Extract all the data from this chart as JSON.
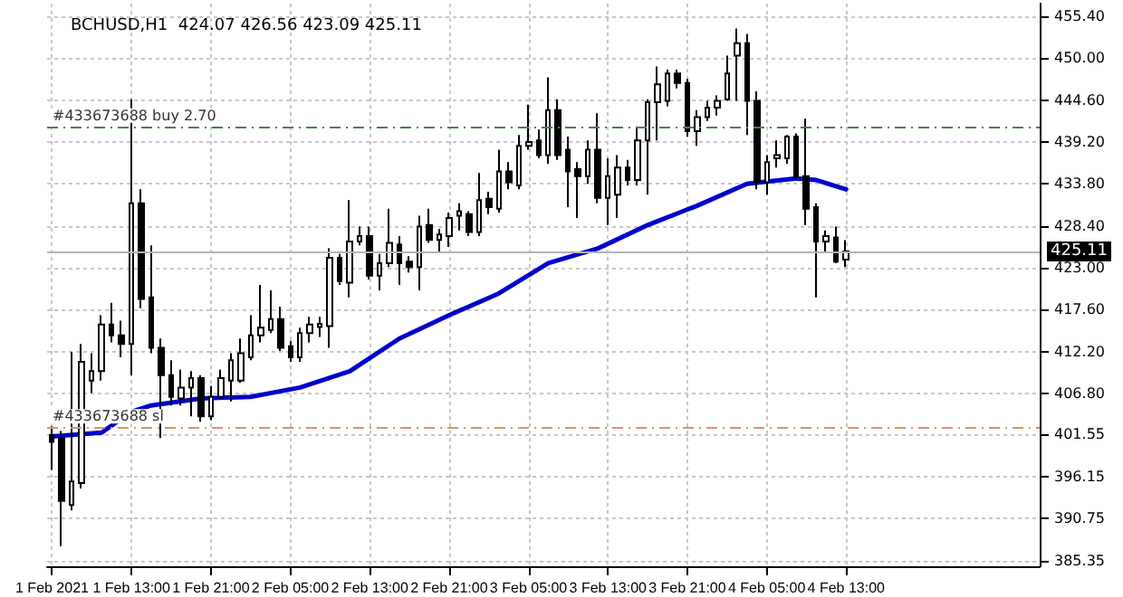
{
  "chart_data": {
    "type": "candlestick",
    "title": "BCHUSD,H1  424.07 426.56 423.09 425.11",
    "x": [
      "2021-02-01T05:00",
      "2021-02-01T06:00",
      "2021-02-01T07:00",
      "2021-02-01T08:00",
      "2021-02-01T09:00",
      "2021-02-01T10:00",
      "2021-02-01T11:00",
      "2021-02-01T12:00",
      "2021-02-01T13:00",
      "2021-02-01T14:00",
      "2021-02-01T15:00",
      "2021-02-01T16:00",
      "2021-02-01T17:00",
      "2021-02-01T18:00",
      "2021-02-01T19:00",
      "2021-02-01T20:00",
      "2021-02-01T21:00",
      "2021-02-01T22:00",
      "2021-02-01T23:00",
      "2021-02-02T00:00",
      "2021-02-02T01:00",
      "2021-02-02T02:00",
      "2021-02-02T03:00",
      "2021-02-02T04:00",
      "2021-02-02T05:00",
      "2021-02-02T06:00",
      "2021-02-02T07:00",
      "2021-02-02T08:00",
      "2021-02-02T09:00",
      "2021-02-02T10:00",
      "2021-02-02T11:00",
      "2021-02-02T12:00",
      "2021-02-02T13:00",
      "2021-02-02T14:00",
      "2021-02-02T15:00",
      "2021-02-02T16:00",
      "2021-02-02T17:00",
      "2021-02-02T18:00",
      "2021-02-02T19:00",
      "2021-02-02T20:00",
      "2021-02-02T21:00",
      "2021-02-02T22:00",
      "2021-02-02T23:00",
      "2021-02-03T00:00",
      "2021-02-03T01:00",
      "2021-02-03T02:00",
      "2021-02-03T03:00",
      "2021-02-03T04:00",
      "2021-02-03T05:00",
      "2021-02-03T06:00",
      "2021-02-03T07:00",
      "2021-02-03T08:00",
      "2021-02-03T09:00",
      "2021-02-03T10:00",
      "2021-02-03T11:00",
      "2021-02-03T12:00",
      "2021-02-03T13:00",
      "2021-02-03T14:00",
      "2021-02-03T15:00",
      "2021-02-03T16:00",
      "2021-02-03T17:00",
      "2021-02-03T18:00",
      "2021-02-03T19:00",
      "2021-02-03T20:00",
      "2021-02-03T21:00",
      "2021-02-03T22:00",
      "2021-02-03T23:00",
      "2021-02-04T00:00",
      "2021-02-04T01:00",
      "2021-02-04T02:00",
      "2021-02-04T03:00",
      "2021-02-04T04:00",
      "2021-02-04T05:00",
      "2021-02-04T06:00",
      "2021-02-04T07:00",
      "2021-02-04T08:00",
      "2021-02-04T09:00",
      "2021-02-04T10:00",
      "2021-02-04T11:00",
      "2021-02-04T12:00",
      "2021-02-04T13:00"
    ],
    "ohlc": [
      [
        401.5,
        402.6,
        397.0,
        400.6
      ],
      [
        401.1,
        402.0,
        387.2,
        393.0
      ],
      [
        392.5,
        412.2,
        391.8,
        395.5
      ],
      [
        395.3,
        413.2,
        394.6,
        410.9
      ],
      [
        408.5,
        412.0,
        406.9,
        409.7
      ],
      [
        409.7,
        416.9,
        408.5,
        415.7
      ],
      [
        415.7,
        418.5,
        413.4,
        414.3
      ],
      [
        414.3,
        416.2,
        411.5,
        413.2
      ],
      [
        413.2,
        444.7,
        409.2,
        431.3
      ],
      [
        431.3,
        433.1,
        417.8,
        419.0
      ],
      [
        419.2,
        425.9,
        412.0,
        412.7
      ],
      [
        412.7,
        413.9,
        401.1,
        409.2
      ],
      [
        409.2,
        411.1,
        405.3,
        406.4
      ],
      [
        406.2,
        409.9,
        405.3,
        407.6
      ],
      [
        407.6,
        409.7,
        403.9,
        408.8
      ],
      [
        408.8,
        409.2,
        403.2,
        403.9
      ],
      [
        403.9,
        407.8,
        403.4,
        406.4
      ],
      [
        406.4,
        409.9,
        406.2,
        408.8
      ],
      [
        408.5,
        412.0,
        405.8,
        411.1
      ],
      [
        408.5,
        413.9,
        408.2,
        412.0
      ],
      [
        411.5,
        416.9,
        411.1,
        414.3
      ],
      [
        414.3,
        420.8,
        413.4,
        415.3
      ],
      [
        415.0,
        420.1,
        414.6,
        416.4
      ],
      [
        416.4,
        418.0,
        412.3,
        412.7
      ],
      [
        412.9,
        413.6,
        410.9,
        411.5
      ],
      [
        411.5,
        415.3,
        410.9,
        414.6
      ],
      [
        414.6,
        416.7,
        413.4,
        415.7
      ],
      [
        415.4,
        416.7,
        414.1,
        415.8
      ],
      [
        415.5,
        425.5,
        412.7,
        424.3
      ],
      [
        424.3,
        424.8,
        420.8,
        421.3
      ],
      [
        421.1,
        431.7,
        419.2,
        426.4
      ],
      [
        426.4,
        428.3,
        425.9,
        427.1
      ],
      [
        427.1,
        428.3,
        421.5,
        422.0
      ],
      [
        422.0,
        424.8,
        420.1,
        423.6
      ],
      [
        423.6,
        430.6,
        423.1,
        426.2
      ],
      [
        426.0,
        427.1,
        420.8,
        423.6
      ],
      [
        423.8,
        424.5,
        422.4,
        423.1
      ],
      [
        423.1,
        429.7,
        420.1,
        428.3
      ],
      [
        428.5,
        430.6,
        426.2,
        426.6
      ],
      [
        426.6,
        428.0,
        425.0,
        427.3
      ],
      [
        427.1,
        430.1,
        425.7,
        429.4
      ],
      [
        429.7,
        431.3,
        427.8,
        430.3
      ],
      [
        429.9,
        430.3,
        427.1,
        427.6
      ],
      [
        427.6,
        435.2,
        427.1,
        431.7
      ],
      [
        431.9,
        432.8,
        429.9,
        430.8
      ],
      [
        430.6,
        438.2,
        430.1,
        435.4
      ],
      [
        435.4,
        436.6,
        433.1,
        434.0
      ],
      [
        433.6,
        440.1,
        433.1,
        438.7
      ],
      [
        438.7,
        444.0,
        438.2,
        439.2
      ],
      [
        439.4,
        440.8,
        437.1,
        437.5
      ],
      [
        437.5,
        447.5,
        436.4,
        443.3
      ],
      [
        443.3,
        444.7,
        436.9,
        437.5
      ],
      [
        438.2,
        439.9,
        430.8,
        435.4
      ],
      [
        435.7,
        436.6,
        429.4,
        434.8
      ],
      [
        434.8,
        439.4,
        433.8,
        438.2
      ],
      [
        438.2,
        442.9,
        431.3,
        432.0
      ],
      [
        432.0,
        437.1,
        428.5,
        434.8
      ],
      [
        432.4,
        437.5,
        429.4,
        435.9
      ],
      [
        435.9,
        436.9,
        433.6,
        434.3
      ],
      [
        434.3,
        441.2,
        433.6,
        439.4
      ],
      [
        439.4,
        444.7,
        432.4,
        444.3
      ],
      [
        444.3,
        448.9,
        439.4,
        446.6
      ],
      [
        444.5,
        448.5,
        443.8,
        448.0
      ],
      [
        448.0,
        448.5,
        446.1,
        446.8
      ],
      [
        446.8,
        447.3,
        439.9,
        440.6
      ],
      [
        440.6,
        443.3,
        438.7,
        442.4
      ],
      [
        442.4,
        444.5,
        441.9,
        443.6
      ],
      [
        443.6,
        445.2,
        442.6,
        444.5
      ],
      [
        444.7,
        450.3,
        444.5,
        448.0
      ],
      [
        450.3,
        453.8,
        444.5,
        451.9
      ],
      [
        451.9,
        453.1,
        440.1,
        444.5
      ],
      [
        444.5,
        445.7,
        433.1,
        434.0
      ],
      [
        434.0,
        437.5,
        432.4,
        436.6
      ],
      [
        437.1,
        439.4,
        435.9,
        437.5
      ],
      [
        437.1,
        440.1,
        436.4,
        439.9
      ],
      [
        439.9,
        440.3,
        434.3,
        434.8
      ],
      [
        434.8,
        442.2,
        428.5,
        430.6
      ],
      [
        430.8,
        431.3,
        419.2,
        426.4
      ],
      [
        426.4,
        427.8,
        425.0,
        427.1
      ],
      [
        426.9,
        428.3,
        423.6,
        423.8
      ],
      [
        424.07,
        426.56,
        423.09,
        425.11
      ]
    ],
    "series": [
      {
        "type": "line",
        "color": "#0000cc",
        "marker": "none",
        "line_style": "solid",
        "x": [
          "2021-02-01T05:00",
          "2021-02-01T10:00",
          "2021-02-01T13:00",
          "2021-02-01T15:00",
          "2021-02-01T20:00",
          "2021-02-02T01:00",
          "2021-02-02T06:00",
          "2021-02-02T11:00",
          "2021-02-02T16:00",
          "2021-02-02T21:00",
          "2021-02-03T02:00",
          "2021-02-03T07:00",
          "2021-02-03T12:00",
          "2021-02-03T17:00",
          "2021-02-03T22:00",
          "2021-02-04T03:00",
          "2021-02-04T05:00",
          "2021-02-04T08:00",
          "2021-02-04T10:00",
          "2021-02-04T13:00"
        ],
        "values": [
          401.3,
          401.8,
          404.5,
          405.3,
          406.2,
          406.4,
          407.6,
          409.7,
          413.9,
          416.9,
          419.7,
          423.6,
          425.5,
          428.5,
          431.0,
          433.8,
          434.1,
          434.5,
          434.3,
          433.1
        ]
      }
    ],
    "xlim": [
      "2021-02-01T04:30",
      "2021-02-05T08:30"
    ],
    "xticks": [
      {
        "value": "2021-02-01T05:00",
        "label": "1 Feb 2021"
      },
      {
        "value": "2021-02-01T13:00",
        "label": "1 Feb 13:00"
      },
      {
        "value": "2021-02-01T21:00",
        "label": "1 Feb 21:00"
      },
      {
        "value": "2021-02-02T05:00",
        "label": "2 Feb 05:00"
      },
      {
        "value": "2021-02-02T13:00",
        "label": "2 Feb 13:00"
      },
      {
        "value": "2021-02-02T21:00",
        "label": "2 Feb 21:00"
      },
      {
        "value": "2021-02-03T05:00",
        "label": "3 Feb 05:00"
      },
      {
        "value": "2021-02-03T13:00",
        "label": "3 Feb 13:00"
      },
      {
        "value": "2021-02-03T21:00",
        "label": "3 Feb 21:00"
      },
      {
        "value": "2021-02-04T05:00",
        "label": "4 Feb 05:00"
      },
      {
        "value": "2021-02-04T13:00",
        "label": "4 Feb 13:00"
      }
    ],
    "ylim": [
      384.6,
      457.0
    ],
    "yticks": [
      {
        "value": 385.35,
        "label": "385.35"
      },
      {
        "value": 390.75,
        "label": "390.75"
      },
      {
        "value": 396.15,
        "label": "396.15"
      },
      {
        "value": 401.55,
        "label": "401.55"
      },
      {
        "value": 406.8,
        "label": "406.80"
      },
      {
        "value": 412.2,
        "label": "412.20"
      },
      {
        "value": 417.6,
        "label": "417.60"
      },
      {
        "value": 423,
        "label": "423.00"
      },
      {
        "value": 428.4,
        "label": "428.40"
      },
      {
        "value": 433.8,
        "label": "433.80"
      },
      {
        "value": 439.2,
        "label": "439.20"
      },
      {
        "value": 444.6,
        "label": "444.60"
      },
      {
        "value": 450,
        "label": "450.00"
      },
      {
        "value": 455.4,
        "label": "455.40"
      }
    ],
    "ref_lines": [
      {
        "axis": "y",
        "value": 441.2,
        "label": "#433673688 buy 2.70",
        "color": "#3c8c3c",
        "line_style": "dashdot"
      },
      {
        "axis": "y",
        "value": 402.5,
        "label": "#433673688 sl",
        "color": "#e0906a",
        "line_style": "dashdot"
      },
      {
        "axis": "y",
        "value": 425.11,
        "label": "425.11",
        "color": "#b4b4b4",
        "line_style": "solid"
      }
    ],
    "grid": true
  }
}
